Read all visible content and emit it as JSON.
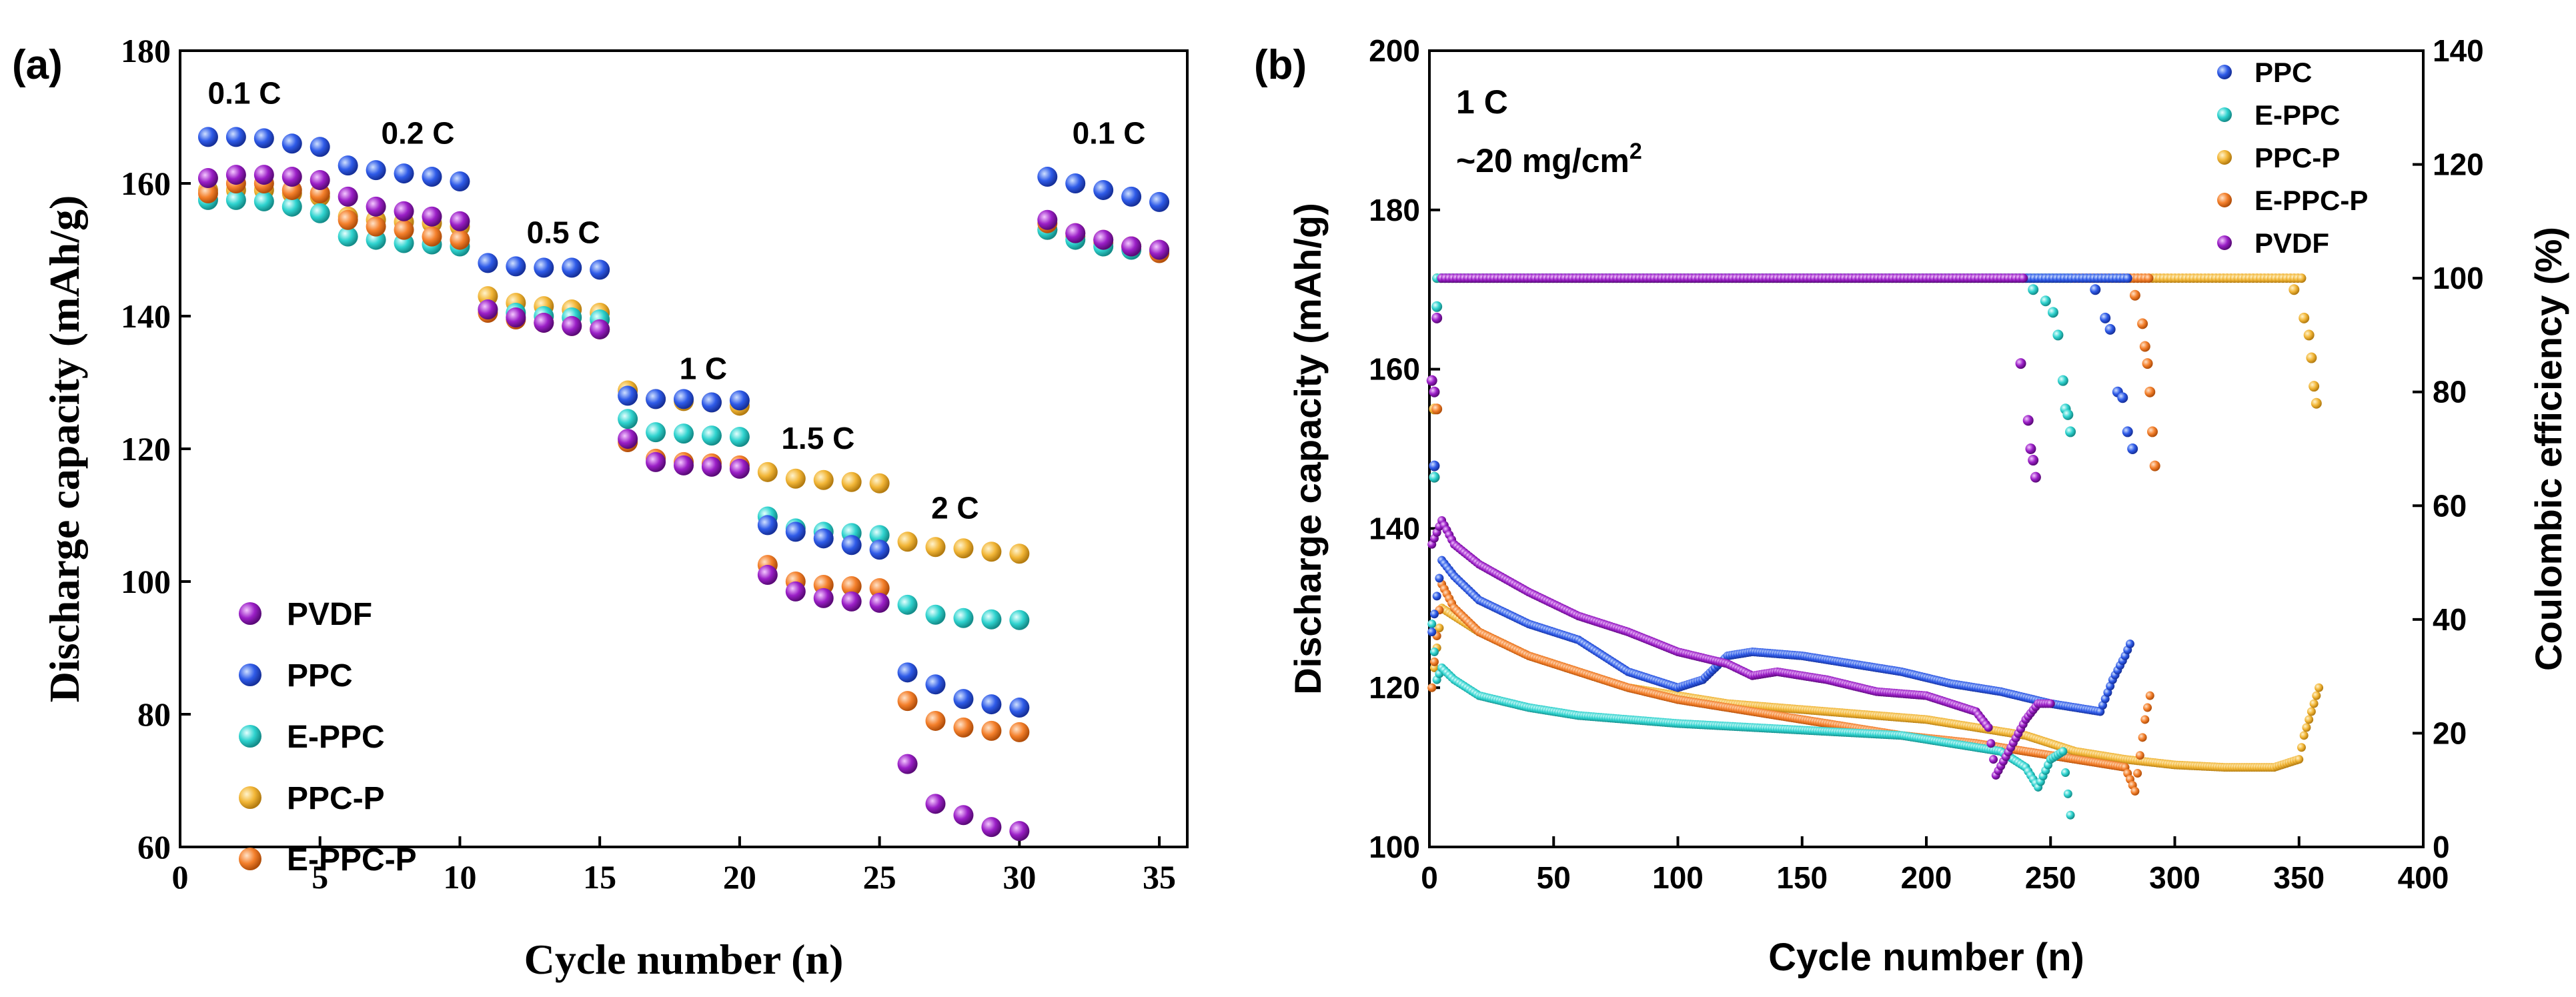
{
  "colors": {
    "PVDF": "#9b1fc7",
    "PPC": "#2f5be8",
    "E-PPC": "#2fd3cf",
    "PPC-P": "#f2b637",
    "E-PPC-P": "#f4802c"
  },
  "chart_data": [
    {
      "type": "scatter",
      "panel_label": "(a)",
      "title": "",
      "xlabel": "Cycle number (n)",
      "ylabel": "Discharge capacity (mAh/g)",
      "xlim": [
        0,
        36
      ],
      "ylim": [
        60,
        180
      ],
      "xticks": [
        0,
        5,
        10,
        15,
        20,
        25,
        30,
        35
      ],
      "yticks": [
        60,
        80,
        100,
        120,
        140,
        160,
        180
      ],
      "legend_position": "bottom-left",
      "legend": [
        "PVDF",
        "PPC",
        "E-PPC",
        "PPC-P",
        "E-PPC-P"
      ],
      "annotations": [
        {
          "text": "0.1 C",
          "x": 2.3,
          "y": 172
        },
        {
          "text": "0.2 C",
          "x": 8.5,
          "y": 166
        },
        {
          "text": "0.5 C",
          "x": 13.7,
          "y": 151
        },
        {
          "text": "1 C",
          "x": 18.7,
          "y": 130.5
        },
        {
          "text": "1.5 C",
          "x": 22.8,
          "y": 120
        },
        {
          "text": "2 C",
          "x": 27.7,
          "y": 109.5
        },
        {
          "text": "0.1 C",
          "x": 33.2,
          "y": 166
        }
      ],
      "x": [
        1,
        2,
        3,
        4,
        5,
        6,
        7,
        8,
        9,
        10,
        11,
        12,
        13,
        14,
        15,
        16,
        17,
        18,
        19,
        20,
        21,
        22,
        23,
        24,
        25,
        26,
        27,
        28,
        29,
        30,
        31,
        32,
        33,
        34,
        35
      ],
      "series": [
        {
          "name": "PVDF",
          "values": [
            160.8,
            161.3,
            161.3,
            161.0,
            160.5,
            158.0,
            156.5,
            155.8,
            155.0,
            154.3,
            141.0,
            139.8,
            139.0,
            138.5,
            138.0,
            121.5,
            118.0,
            117.5,
            117.3,
            117.0,
            101.0,
            98.5,
            97.5,
            97.0,
            96.8,
            72.5,
            66.5,
            64.8,
            63.0,
            62.4,
            154.5,
            152.5,
            151.5,
            150.5,
            150.0
          ]
        },
        {
          "name": "PPC",
          "values": [
            167.0,
            167.0,
            166.8,
            166.0,
            165.5,
            162.7,
            162.0,
            161.5,
            161.0,
            160.3,
            148.0,
            147.5,
            147.3,
            147.3,
            147.0,
            128.0,
            127.5,
            127.5,
            127.0,
            127.3,
            108.5,
            107.5,
            106.5,
            105.5,
            104.8,
            86.3,
            84.5,
            82.3,
            81.5,
            81.0,
            161.0,
            160.0,
            159.0,
            158.0,
            157.2
          ]
        },
        {
          "name": "E-PPC",
          "values": [
            157.5,
            157.5,
            157.3,
            156.5,
            155.5,
            152.0,
            151.5,
            151.0,
            150.8,
            150.5,
            141.0,
            140.5,
            140.0,
            139.8,
            139.5,
            124.5,
            122.5,
            122.3,
            122.0,
            121.8,
            109.8,
            108.0,
            107.5,
            107.3,
            107.0,
            96.5,
            95.0,
            94.5,
            94.3,
            94.2,
            153.0,
            151.5,
            150.5,
            150.0,
            149.8
          ]
        },
        {
          "name": "PPC-P",
          "values": [
            159.0,
            159.0,
            159.0,
            158.5,
            158.0,
            155.0,
            154.5,
            154.2,
            154.0,
            153.5,
            143.0,
            142.0,
            141.5,
            141.0,
            140.5,
            128.8,
            127.5,
            127.2,
            127.0,
            126.5,
            116.5,
            115.5,
            115.3,
            115.0,
            114.8,
            106.0,
            105.2,
            105.0,
            104.5,
            104.2,
            153.0,
            152.0,
            151.0,
            150.5,
            150.0
          ]
        },
        {
          "name": "E-PPC-P",
          "values": [
            158.5,
            160.0,
            160.0,
            159.0,
            158.5,
            154.5,
            153.5,
            153.0,
            152.0,
            151.5,
            140.5,
            139.5,
            139.0,
            138.5,
            138.0,
            121.0,
            118.5,
            118.0,
            117.8,
            117.5,
            102.5,
            100.0,
            99.5,
            99.3,
            99.0,
            82.0,
            79.0,
            78.0,
            77.5,
            77.3,
            154.0,
            152.5,
            151.5,
            150.5,
            149.5
          ]
        }
      ]
    },
    {
      "type": "scatter",
      "panel_label": "(b)",
      "title": "",
      "annotation_lines": [
        "1 C",
        "~20 mg/cm",
        "2"
      ],
      "xlabel": "Cycle number (n)",
      "ylabel": "Discharge capacity (mAh/g)",
      "y2label": "Coulombic efficiency (%)",
      "xlim": [
        0,
        400
      ],
      "ylim": [
        100,
        200
      ],
      "y2lim": [
        0,
        140
      ],
      "xticks": [
        0,
        50,
        100,
        150,
        200,
        250,
        300,
        350,
        400
      ],
      "yticks": [
        100,
        120,
        140,
        160,
        180,
        200
      ],
      "y2ticks": [
        0,
        20,
        40,
        60,
        80,
        100,
        120,
        140
      ],
      "legend_position": "top-right",
      "legend": [
        "PPC",
        "E-PPC",
        "PPC-P",
        "E-PPC-P",
        "PVDF"
      ],
      "capacity_series": [
        {
          "name": "PPC",
          "x": [
            1,
            5,
            10,
            20,
            40,
            60,
            80,
            100,
            110,
            120,
            130,
            150,
            170,
            190,
            210,
            230,
            250,
            260,
            270,
            275,
            280,
            282
          ],
          "y": [
            127,
            136,
            134,
            131,
            128,
            126,
            122,
            120,
            121,
            124,
            124.5,
            124,
            123,
            122,
            120.5,
            119.5,
            118,
            117.5,
            117,
            121,
            124,
            125.5
          ]
        },
        {
          "name": "E-PPC",
          "x": [
            1,
            3,
            5,
            10,
            20,
            40,
            60,
            80,
            100,
            130,
            160,
            190,
            210,
            230,
            240,
            245,
            250,
            255,
            258
          ],
          "y": [
            128,
            121,
            122.5,
            121,
            119,
            117.5,
            116.5,
            116,
            115.5,
            115,
            114.5,
            114,
            113,
            112,
            110,
            107.5,
            111,
            112,
            104
          ]
        },
        {
          "name": "PPC-P",
          "x": [
            1,
            5,
            10,
            20,
            40,
            60,
            80,
            100,
            120,
            140,
            160,
            180,
            200,
            220,
            240,
            260,
            280,
            300,
            320,
            340,
            350,
            352,
            355,
            358
          ],
          "y": [
            120,
            130,
            129,
            127,
            124,
            122,
            120,
            119,
            118,
            117.5,
            117,
            116.5,
            116,
            115,
            114,
            112,
            111,
            110.3,
            110,
            110,
            111,
            114,
            117,
            120
          ]
        },
        {
          "name": "E-PPC-P",
          "x": [
            1,
            5,
            10,
            20,
            40,
            60,
            80,
            100,
            130,
            160,
            190,
            220,
            240,
            260,
            270,
            280,
            284,
            288,
            290
          ],
          "y": [
            120,
            133,
            130,
            127,
            124,
            122,
            120,
            118.5,
            117,
            115.5,
            114,
            113,
            112,
            111,
            110.5,
            110,
            107,
            116,
            119
          ]
        },
        {
          "name": "PVDF",
          "x": [
            1,
            5,
            10,
            20,
            40,
            60,
            80,
            100,
            120,
            130,
            140,
            160,
            180,
            200,
            220,
            225,
            228,
            240,
            245,
            250
          ],
          "y": [
            138,
            141,
            138,
            135.5,
            132,
            129,
            127,
            124.5,
            123,
            121.5,
            122,
            121,
            119.5,
            119,
            117,
            115,
            109,
            116,
            118,
            118
          ]
        }
      ],
      "efficiency_series": [
        {
          "name": "PPC",
          "plateau": 100,
          "x_start": 5,
          "x_end": 282,
          "drops": [
            [
              268,
              98
            ],
            [
              272,
              93
            ],
            [
              274,
              91
            ],
            [
              277,
              80
            ],
            [
              279,
              79
            ],
            [
              281,
              73
            ],
            [
              283,
              70
            ],
            [
              2,
              67
            ]
          ]
        },
        {
          "name": "E-PPC",
          "plateau": 100,
          "x_start": 3,
          "x_end": 258,
          "drops": [
            [
              243,
              98
            ],
            [
              248,
              96
            ],
            [
              251,
              94
            ],
            [
              253,
              90
            ],
            [
              255,
              82
            ],
            [
              256,
              77
            ],
            [
              257,
              76
            ],
            [
              258,
              73
            ],
            [
              2,
              65
            ],
            [
              3,
              95
            ]
          ]
        },
        {
          "name": "PPC-P",
          "plateau": 100,
          "x_start": 3,
          "x_end": 352,
          "drops": [
            [
              348,
              98
            ],
            [
              352,
              93
            ],
            [
              354,
              90
            ],
            [
              355,
              86
            ],
            [
              356,
              81
            ],
            [
              357,
              78
            ],
            [
              2,
              77
            ]
          ]
        },
        {
          "name": "E-PPC-P",
          "plateau": 100,
          "x_start": 3,
          "x_end": 290,
          "drops": [
            [
              284,
              97
            ],
            [
              287,
              92
            ],
            [
              288,
              88
            ],
            [
              289,
              85
            ],
            [
              290,
              80
            ],
            [
              291,
              73
            ],
            [
              292,
              67
            ],
            [
              3,
              77
            ],
            [
              2,
              65
            ]
          ]
        },
        {
          "name": "PVDF",
          "plateau": 100,
          "x_start": 5,
          "x_end": 240,
          "drops": [
            [
              238,
              85
            ],
            [
              241,
              75
            ],
            [
              242,
              70
            ],
            [
              243,
              68
            ],
            [
              244,
              65
            ],
            [
              1,
              82
            ],
            [
              2,
              80
            ],
            [
              3,
              93
            ]
          ]
        }
      ]
    }
  ]
}
